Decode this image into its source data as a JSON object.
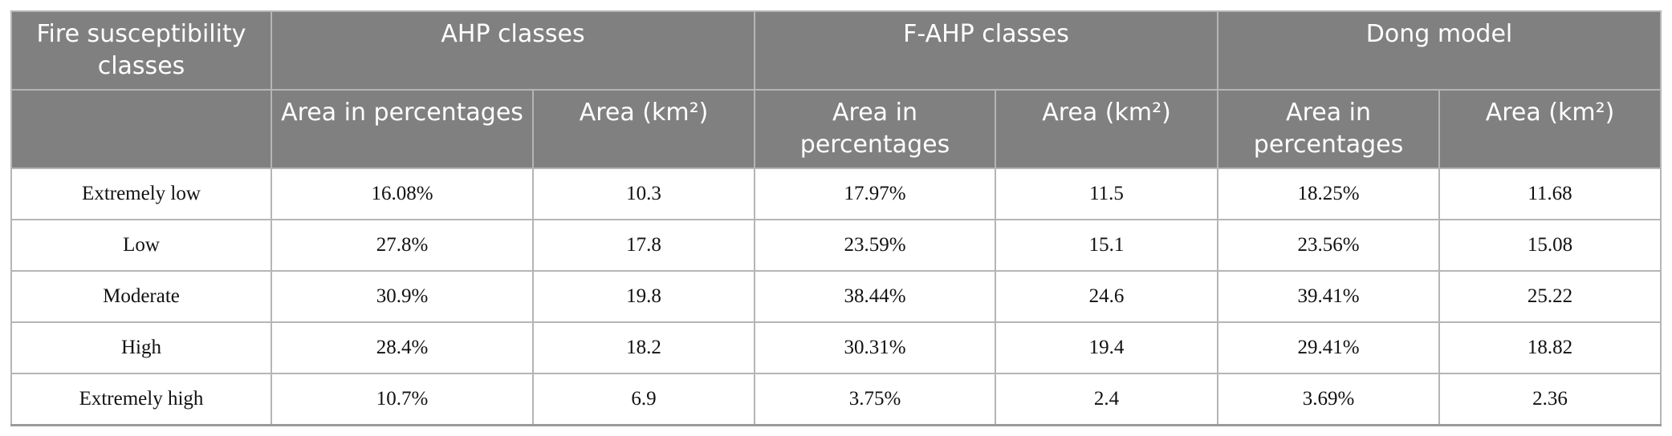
{
  "table": {
    "header": {
      "first": "Fire susceptibility classes",
      "groups": [
        {
          "title": "AHP classes",
          "columns": [
            "Area in percentages",
            "Area (km²)"
          ]
        },
        {
          "title": "F-AHP classes",
          "columns": [
            "Area in percentages",
            "Area (km²)"
          ]
        },
        {
          "title": "Dong model",
          "columns": [
            "Area in percentages",
            "Area (km²)"
          ]
        }
      ]
    },
    "rows": [
      [
        "Extremely low",
        "16.08%",
        "10.3",
        "17.97%",
        "11.5",
        "18.25%",
        "11.68"
      ],
      [
        "Low",
        "27.8%",
        "17.8",
        "23.59%",
        "15.1",
        "23.56%",
        "15.08"
      ],
      [
        "Moderate",
        "30.9%",
        "19.8",
        "38.44%",
        "24.6",
        "39.41%",
        "25.22"
      ],
      [
        "High",
        "28.4%",
        "18.2",
        "30.31%",
        "19.4",
        "29.41%",
        "18.82"
      ],
      [
        "Extremely high",
        "10.7%",
        "6.9",
        "3.75%",
        "2.4",
        "3.69%",
        "2.36"
      ]
    ]
  }
}
